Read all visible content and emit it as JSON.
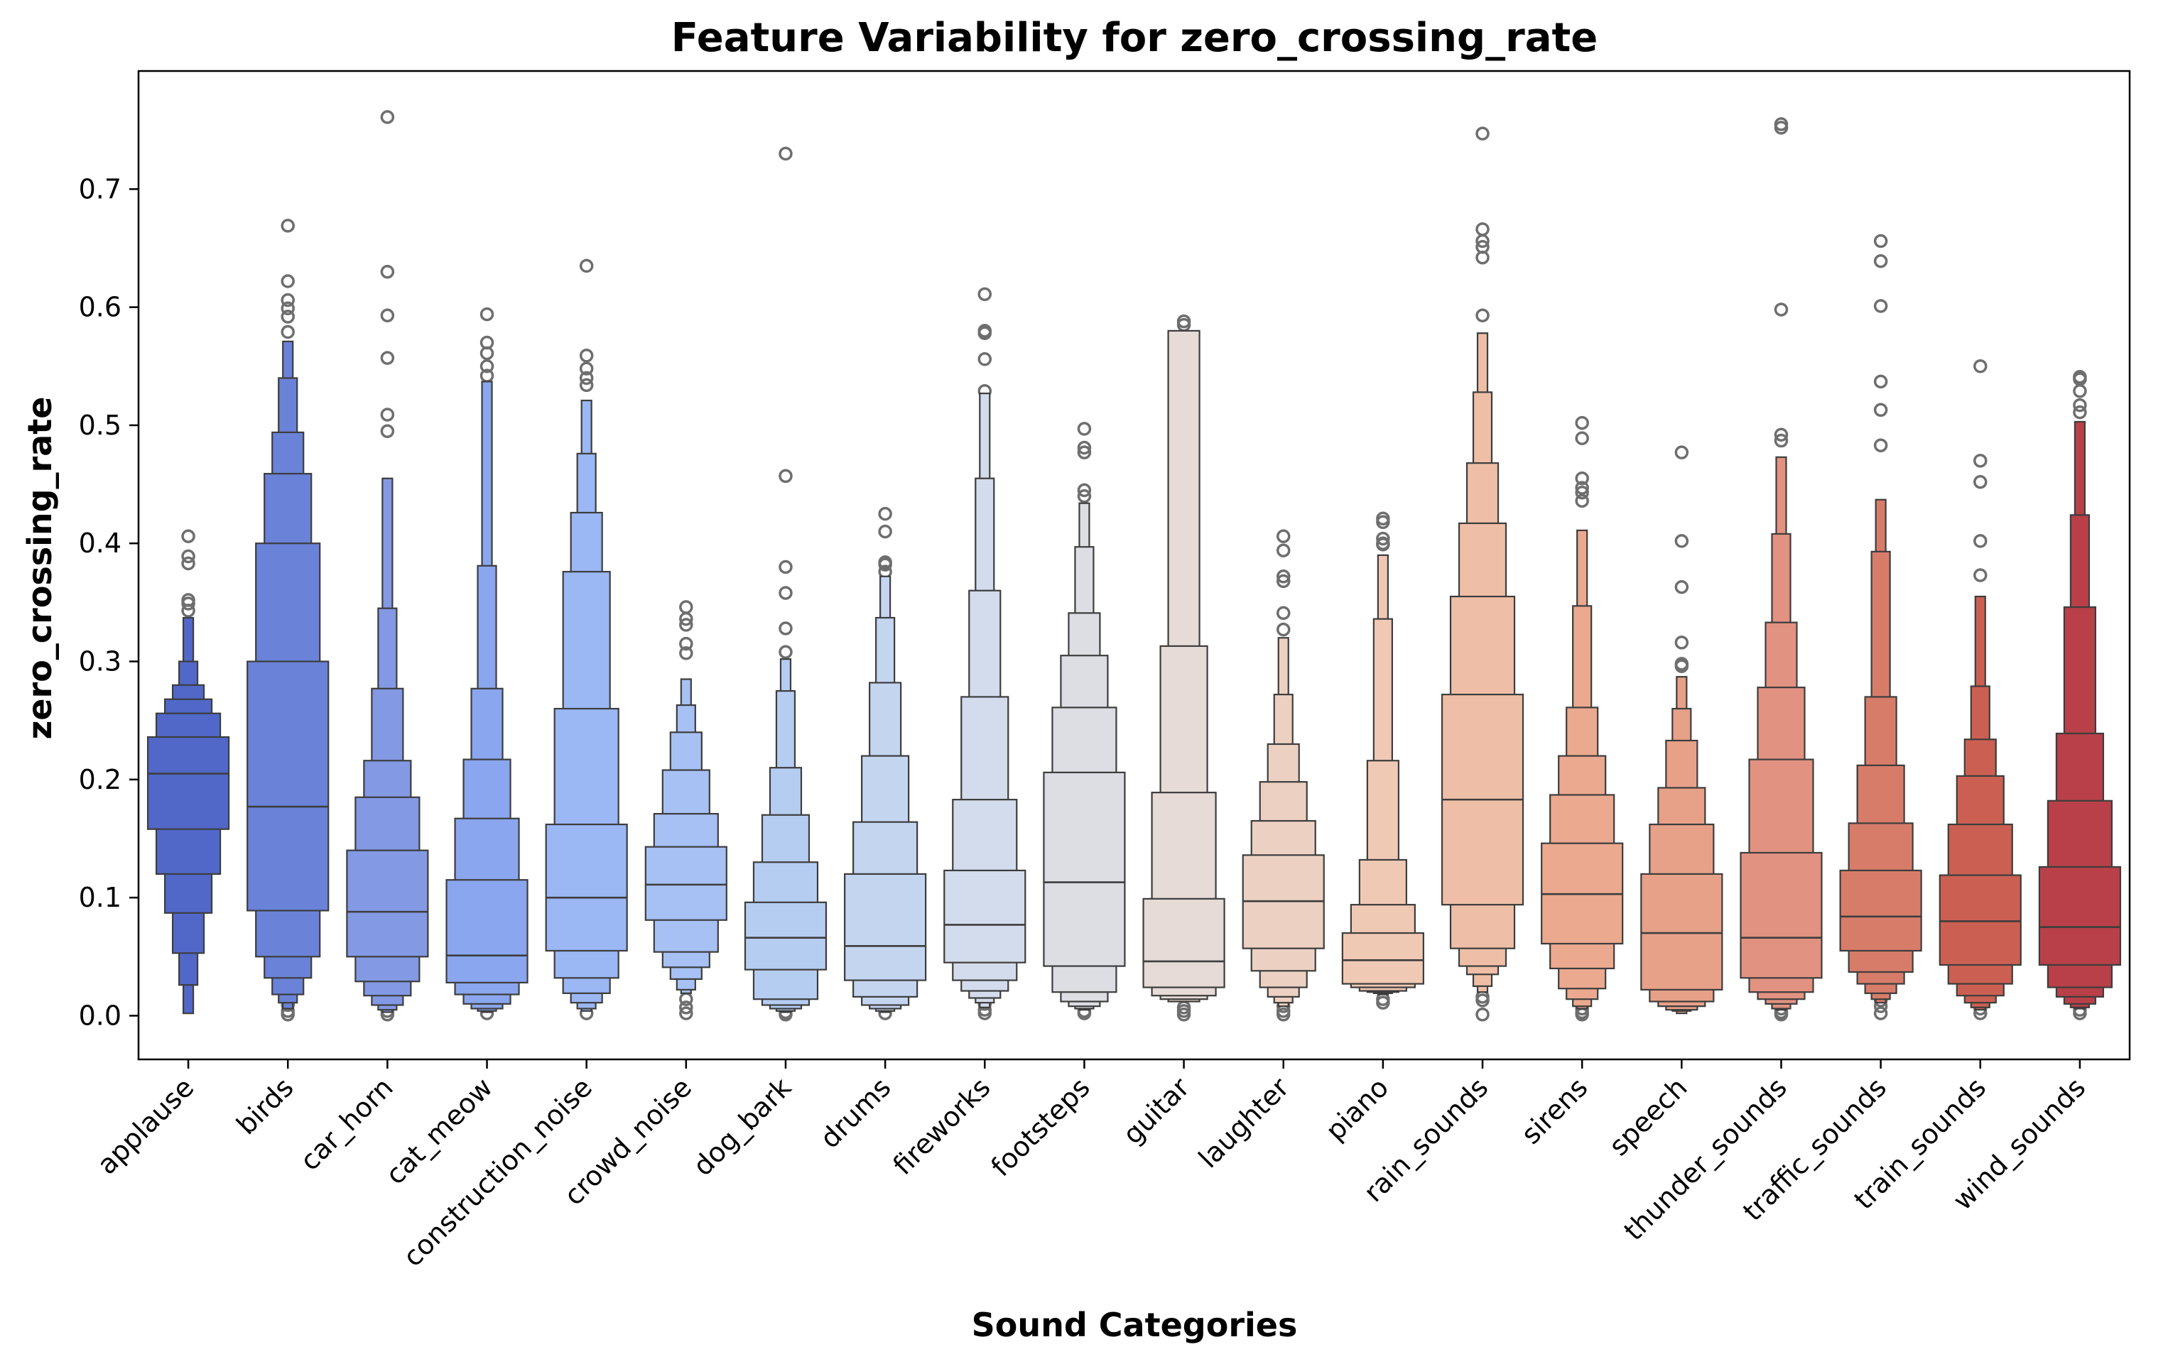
{
  "chart_data": {
    "type": "boxen",
    "title": "Feature Variability for zero_crossing_rate",
    "xlabel": "Sound Categories",
    "ylabel": "zero_crossing_rate",
    "ylim": [
      -0.037,
      0.8
    ],
    "yticks": [
      0.0,
      0.1,
      0.2,
      0.3,
      0.4,
      0.5,
      0.6,
      0.7
    ],
    "ytick_labels": [
      "0.0",
      "0.1",
      "0.2",
      "0.3",
      "0.4",
      "0.5",
      "0.6",
      "0.7"
    ],
    "palette": "coolwarm",
    "grid": false,
    "categories": [
      "applause",
      "birds",
      "car_horn",
      "cat_meow",
      "construction_noise",
      "crowd_noise",
      "dog_bark",
      "drums",
      "fireworks",
      "footsteps",
      "guitar",
      "laughter",
      "piano",
      "rain_sounds",
      "sirens",
      "speech",
      "thunder_sounds",
      "traffic_sounds",
      "train_sounds",
      "wind_sounds"
    ],
    "colors": [
      "#5168c9",
      "#6a83d8",
      "#8399e4",
      "#8aa6ee",
      "#9bb7f4",
      "#a7c1f5",
      "#b6cdf2",
      "#c4d5f0",
      "#d3dcec",
      "#dcdee3",
      "#e6dbd6",
      "#ecd1c3",
      "#f0c9b5",
      "#eebfa6",
      "#eba98f",
      "#e7a189",
      "#e29281",
      "#d87c6a",
      "#cb6052",
      "#b94048"
    ],
    "series": [
      {
        "category": "applause",
        "median": 0.205,
        "levels": [
          [
            0.158,
            0.236
          ],
          [
            0.12,
            0.256
          ],
          [
            0.087,
            0.268
          ],
          [
            0.053,
            0.28
          ],
          [
            0.026,
            0.3
          ],
          [
            0.002,
            0.337
          ]
        ],
        "outliers": [
          0.406,
          0.389,
          0.383,
          0.352,
          0.349,
          0.343
        ]
      },
      {
        "category": "birds",
        "median": 0.177,
        "levels": [
          [
            0.089,
            0.3
          ],
          [
            0.05,
            0.4
          ],
          [
            0.032,
            0.459
          ],
          [
            0.018,
            0.494
          ],
          [
            0.011,
            0.54
          ],
          [
            0.006,
            0.571
          ]
        ],
        "outliers": [
          0.669,
          0.622,
          0.606,
          0.599,
          0.592,
          0.579,
          0.009,
          0.004,
          0.001
        ]
      },
      {
        "category": "car_horn",
        "median": 0.088,
        "levels": [
          [
            0.05,
            0.14
          ],
          [
            0.029,
            0.185
          ],
          [
            0.017,
            0.216
          ],
          [
            0.009,
            0.277
          ],
          [
            0.005,
            0.345
          ],
          [
            0.003,
            0.455
          ]
        ],
        "outliers": [
          0.761,
          0.63,
          0.593,
          0.557,
          0.509,
          0.495,
          0.004,
          0.001
        ]
      },
      {
        "category": "cat_meow",
        "median": 0.051,
        "levels": [
          [
            0.028,
            0.115
          ],
          [
            0.018,
            0.167
          ],
          [
            0.01,
            0.217
          ],
          [
            0.006,
            0.277
          ],
          [
            0.004,
            0.381
          ],
          [
            0.003,
            0.537
          ]
        ],
        "outliers": [
          0.594,
          0.57,
          0.561,
          0.55,
          0.542,
          0.002
        ]
      },
      {
        "category": "construction_noise",
        "median": 0.1,
        "levels": [
          [
            0.055,
            0.162
          ],
          [
            0.032,
            0.26
          ],
          [
            0.019,
            0.376
          ],
          [
            0.011,
            0.426
          ],
          [
            0.006,
            0.476
          ],
          [
            0.004,
            0.521
          ]
        ],
        "outliers": [
          0.635,
          0.559,
          0.548,
          0.54,
          0.534,
          0.002
        ]
      },
      {
        "category": "crowd_noise",
        "median": 0.111,
        "levels": [
          [
            0.081,
            0.143
          ],
          [
            0.054,
            0.171
          ],
          [
            0.041,
            0.208
          ],
          [
            0.031,
            0.24
          ],
          [
            0.022,
            0.263
          ],
          [
            0.019,
            0.285
          ]
        ],
        "outliers": [
          0.346,
          0.336,
          0.331,
          0.315,
          0.307,
          0.025,
          0.014,
          0.007,
          0.002
        ]
      },
      {
        "category": "dog_bark",
        "median": 0.066,
        "levels": [
          [
            0.039,
            0.096
          ],
          [
            0.014,
            0.13
          ],
          [
            0.009,
            0.17
          ],
          [
            0.006,
            0.21
          ],
          [
            0.004,
            0.275
          ],
          [
            0.003,
            0.302
          ]
        ],
        "outliers": [
          0.73,
          0.457,
          0.38,
          0.358,
          0.328,
          0.308,
          0.003,
          0.001
        ]
      },
      {
        "category": "drums",
        "median": 0.059,
        "levels": [
          [
            0.03,
            0.12
          ],
          [
            0.016,
            0.164
          ],
          [
            0.009,
            0.22
          ],
          [
            0.006,
            0.282
          ],
          [
            0.004,
            0.337
          ],
          [
            0.003,
            0.372
          ]
        ],
        "outliers": [
          0.425,
          0.41,
          0.384,
          0.382,
          0.376,
          0.002
        ]
      },
      {
        "category": "fireworks",
        "median": 0.077,
        "levels": [
          [
            0.045,
            0.123
          ],
          [
            0.03,
            0.183
          ],
          [
            0.021,
            0.27
          ],
          [
            0.015,
            0.36
          ],
          [
            0.011,
            0.455
          ],
          [
            0.007,
            0.527
          ]
        ],
        "outliers": [
          0.611,
          0.58,
          0.578,
          0.556,
          0.529,
          0.01,
          0.005,
          0.002
        ]
      },
      {
        "category": "footsteps",
        "median": 0.113,
        "levels": [
          [
            0.042,
            0.206
          ],
          [
            0.02,
            0.261
          ],
          [
            0.012,
            0.305
          ],
          [
            0.008,
            0.341
          ],
          [
            0.006,
            0.397
          ],
          [
            0.005,
            0.434
          ]
        ],
        "outliers": [
          0.497,
          0.481,
          0.477,
          0.445,
          0.44,
          0.004,
          0.002
        ]
      },
      {
        "category": "guitar",
        "median": 0.046,
        "levels": [
          [
            0.024,
            0.099
          ],
          [
            0.017,
            0.189
          ],
          [
            0.014,
            0.313
          ],
          [
            0.012,
            0.58
          ]
        ],
        "outliers": [
          0.588,
          0.585,
          0.007,
          0.004,
          0.001
        ]
      },
      {
        "category": "laughter",
        "median": 0.097,
        "levels": [
          [
            0.057,
            0.136
          ],
          [
            0.038,
            0.165
          ],
          [
            0.024,
            0.198
          ],
          [
            0.016,
            0.23
          ],
          [
            0.011,
            0.272
          ],
          [
            0.008,
            0.32
          ]
        ],
        "outliers": [
          0.406,
          0.394,
          0.372,
          0.368,
          0.341,
          0.327,
          0.008,
          0.004,
          0.001
        ]
      },
      {
        "category": "piano",
        "median": 0.047,
        "levels": [
          [
            0.027,
            0.07
          ],
          [
            0.024,
            0.094
          ],
          [
            0.021,
            0.132
          ],
          [
            0.02,
            0.216
          ],
          [
            0.019,
            0.336
          ],
          [
            0.018,
            0.39
          ]
        ],
        "outliers": [
          0.421,
          0.418,
          0.404,
          0.4,
          0.399,
          0.014,
          0.011
        ]
      },
      {
        "category": "rain_sounds",
        "median": 0.183,
        "levels": [
          [
            0.094,
            0.272
          ],
          [
            0.057,
            0.355
          ],
          [
            0.042,
            0.417
          ],
          [
            0.035,
            0.468
          ],
          [
            0.025,
            0.528
          ],
          [
            0.02,
            0.578
          ]
        ],
        "outliers": [
          0.747,
          0.666,
          0.656,
          0.651,
          0.642,
          0.593,
          0.016,
          0.013,
          0.001
        ]
      },
      {
        "category": "sirens",
        "median": 0.103,
        "levels": [
          [
            0.061,
            0.146
          ],
          [
            0.04,
            0.187
          ],
          [
            0.023,
            0.22
          ],
          [
            0.014,
            0.261
          ],
          [
            0.008,
            0.347
          ],
          [
            0.006,
            0.411
          ]
        ],
        "outliers": [
          0.502,
          0.489,
          0.455,
          0.447,
          0.443,
          0.436,
          0.006,
          0.003,
          0.001
        ]
      },
      {
        "category": "speech",
        "median": 0.07,
        "levels": [
          [
            0.022,
            0.12
          ],
          [
            0.012,
            0.162
          ],
          [
            0.008,
            0.193
          ],
          [
            0.005,
            0.233
          ],
          [
            0.004,
            0.26
          ],
          [
            0.002,
            0.287
          ]
        ],
        "outliers": [
          0.477,
          0.402,
          0.363,
          0.316,
          0.298,
          0.296
        ]
      },
      {
        "category": "thunder_sounds",
        "median": 0.066,
        "levels": [
          [
            0.032,
            0.138
          ],
          [
            0.02,
            0.217
          ],
          [
            0.014,
            0.278
          ],
          [
            0.01,
            0.333
          ],
          [
            0.006,
            0.408
          ],
          [
            0.005,
            0.473
          ]
        ],
        "outliers": [
          0.755,
          0.752,
          0.598,
          0.492,
          0.487,
          0.006,
          0.003,
          0.001
        ]
      },
      {
        "category": "traffic_sounds",
        "median": 0.084,
        "levels": [
          [
            0.055,
            0.123
          ],
          [
            0.037,
            0.163
          ],
          [
            0.027,
            0.212
          ],
          [
            0.019,
            0.27
          ],
          [
            0.014,
            0.393
          ],
          [
            0.011,
            0.437
          ]
        ],
        "outliers": [
          0.656,
          0.639,
          0.601,
          0.537,
          0.513,
          0.483,
          0.013,
          0.008,
          0.002
        ]
      },
      {
        "category": "train_sounds",
        "median": 0.08,
        "levels": [
          [
            0.043,
            0.119
          ],
          [
            0.027,
            0.162
          ],
          [
            0.017,
            0.203
          ],
          [
            0.011,
            0.234
          ],
          [
            0.007,
            0.279
          ],
          [
            0.005,
            0.355
          ]
        ],
        "outliers": [
          0.55,
          0.47,
          0.452,
          0.402,
          0.373,
          0.006,
          0.002
        ]
      },
      {
        "category": "wind_sounds",
        "median": 0.075,
        "levels": [
          [
            0.043,
            0.126
          ],
          [
            0.024,
            0.182
          ],
          [
            0.016,
            0.239
          ],
          [
            0.01,
            0.346
          ],
          [
            0.007,
            0.424
          ],
          [
            0.006,
            0.503
          ]
        ],
        "outliers": [
          0.541,
          0.539,
          0.529,
          0.517,
          0.511,
          0.005,
          0.002
        ]
      }
    ]
  }
}
